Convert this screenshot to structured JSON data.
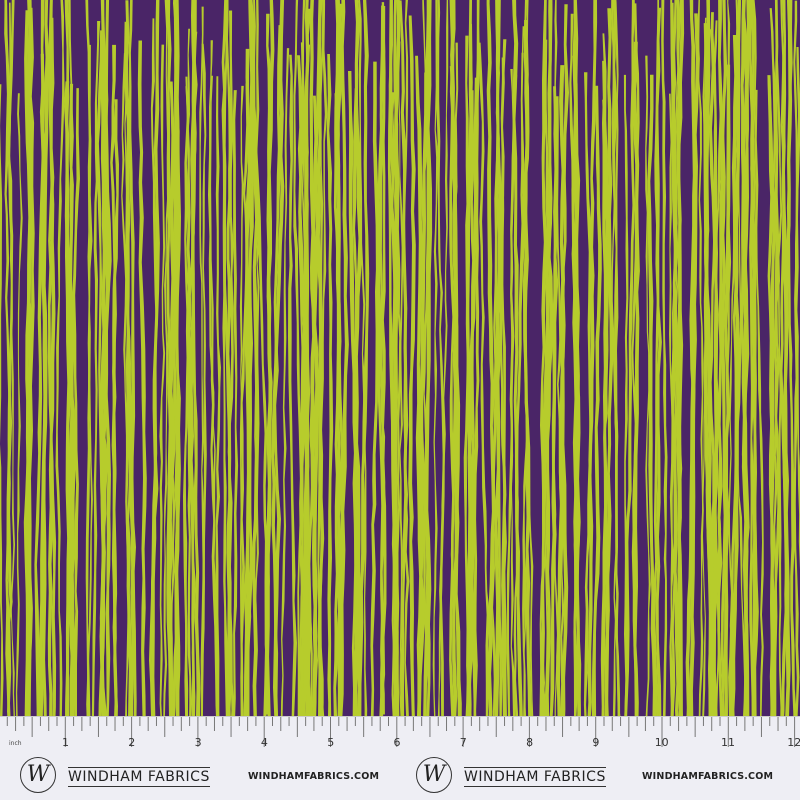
{
  "colors": {
    "background": "#4a2567",
    "stripe": "#b7cc2c",
    "ruler": "#eeeef4"
  },
  "ruler": {
    "unit_label": "inch",
    "numbers": [
      "1",
      "2",
      "3",
      "4",
      "5",
      "6",
      "7",
      "8",
      "9",
      "10",
      "11",
      "12"
    ],
    "logos": [
      {
        "logo_letter": "W",
        "brand": "WINDHAM FABRICS",
        "website": "WINDHAMFABRICS.COM"
      },
      {
        "logo_letter": "W",
        "brand": "WINDHAM FABRICS",
        "website": "WINDHAMFABRICS.COM"
      }
    ]
  }
}
